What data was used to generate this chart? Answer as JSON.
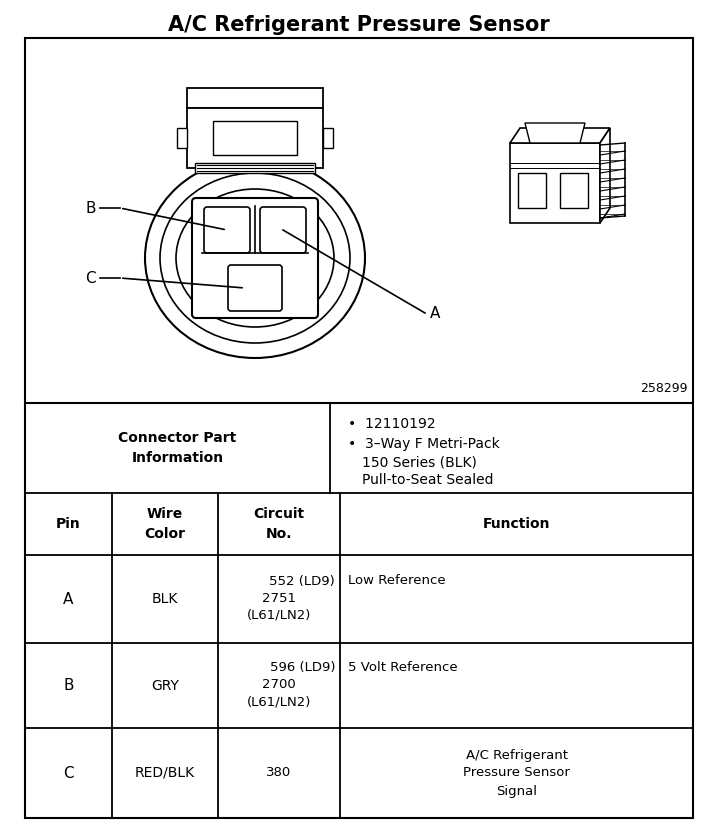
{
  "title": "A/C Refrigerant Pressure Sensor",
  "title_fontsize": 15,
  "background_color": "#f0f0f0",
  "border_color": "#000000",
  "diagram_ref": "258299",
  "connector_part_label": "Connector Part\nInformation",
  "connector_part_info_line1": "•  12110192",
  "connector_part_info_line2": "•  3–Way F Metri-Pack",
  "connector_part_info_line3": "    150 Series (BLK)",
  "connector_part_info_line4": "    Pull-to-Seat Sealed",
  "table_headers": [
    "Pin",
    "Wire\nColor",
    "Circuit\nNo.",
    "Function"
  ],
  "table_rows": [
    [
      "A",
      "BLK",
      "552 (LD9)\n2751\n(L61/LN2)",
      "Low Reference"
    ],
    [
      "B",
      "GRY",
      "596 (LD9)\n2700\n(L61/LN2)",
      "5 Volt Reference"
    ],
    [
      "C",
      "RED/BLK",
      "380",
      "A/C Refrigerant\nPressure Sensor\nSignal"
    ]
  ],
  "fig_width": 7.18,
  "fig_height": 8.33,
  "dpi": 100
}
